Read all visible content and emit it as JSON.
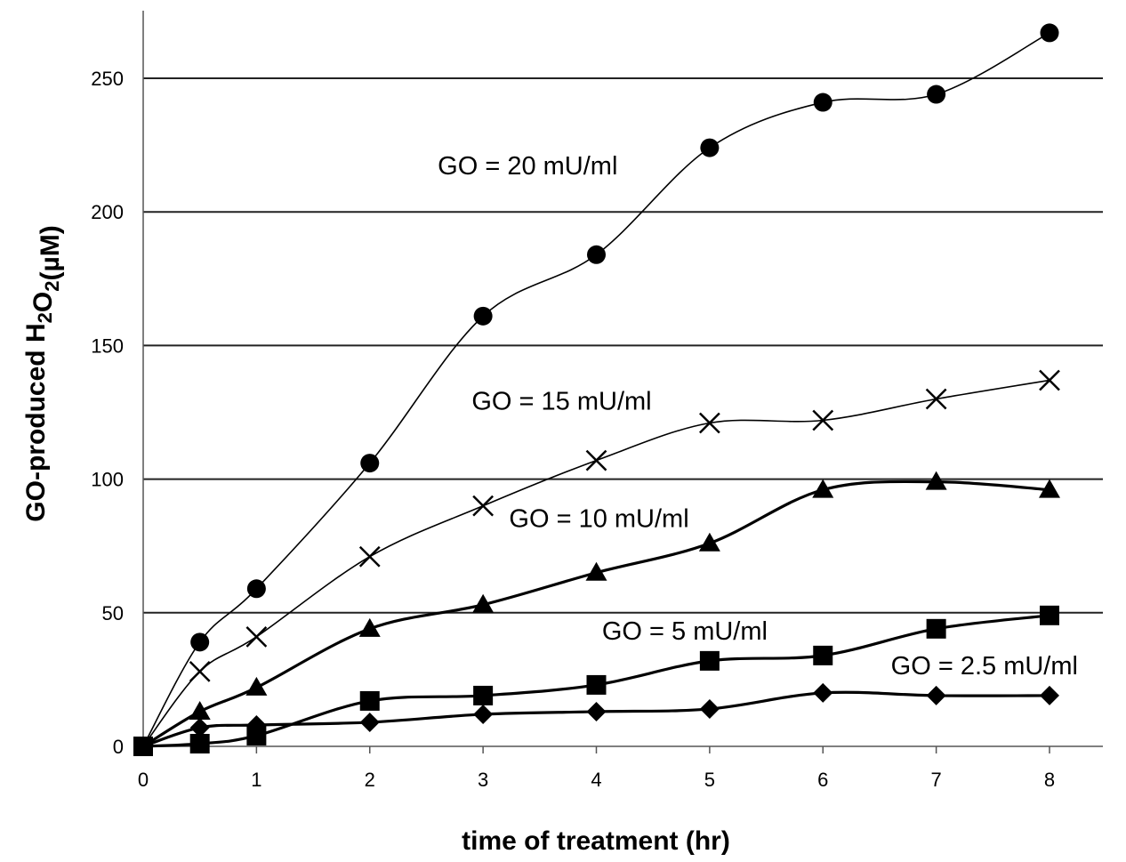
{
  "chart_data": {
    "type": "line",
    "title": "",
    "xlabel": "time of treatment (hr)",
    "ylabel": {
      "parts": [
        {
          "text": "GO-produced H",
          "sub": false
        },
        {
          "text": "2",
          "sub": true
        },
        {
          "text": "O",
          "sub": false
        },
        {
          "text": "2",
          "sub": true
        },
        {
          "text": "(µM)",
          "sub": false
        }
      ]
    },
    "xlim": [
      0,
      8
    ],
    "ylim": [
      0,
      250
    ],
    "xticks": [
      0,
      1,
      2,
      3,
      4,
      5,
      6,
      7,
      8
    ],
    "yticks": [
      0,
      50,
      100,
      150,
      200,
      250
    ],
    "grid": "horizontal",
    "legend": "none",
    "x": [
      0,
      0.5,
      1,
      2,
      3,
      4,
      5,
      6,
      7,
      8
    ],
    "series": [
      {
        "name": "GO = 20 mU/ml",
        "marker": "circle",
        "line": "thin",
        "values": [
          0,
          39,
          59,
          106,
          161,
          184,
          224,
          241,
          244,
          267
        ]
      },
      {
        "name": "GO = 15 mU/ml",
        "marker": "cross",
        "line": "thin",
        "values": [
          0,
          28,
          41,
          71,
          90,
          107,
          121,
          122,
          130,
          137
        ]
      },
      {
        "name": "GO = 10 mU/ml",
        "marker": "triangle",
        "line": "thick",
        "values": [
          0,
          13,
          22,
          44,
          53,
          65,
          76,
          96,
          99,
          96
        ]
      },
      {
        "name": "GO = 5 mU/ml",
        "marker": "square",
        "line": "thick",
        "values": [
          0,
          1,
          4,
          17,
          19,
          23,
          32,
          34,
          44,
          49
        ]
      },
      {
        "name": "GO = 2.5 mU/ml",
        "marker": "diamond",
        "line": "thick",
        "values": [
          0,
          7,
          8,
          9,
          12,
          13,
          14,
          20,
          19,
          19
        ]
      }
    ]
  }
}
